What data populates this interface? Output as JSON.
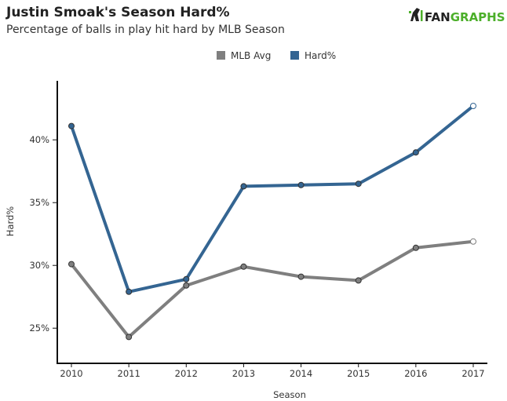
{
  "chart_data": {
    "type": "line",
    "title": "Justin Smoak's Season Hard%",
    "subtitle": "Percentage of balls in play hit hard by MLB Season",
    "brand": "FANGRAPHS",
    "brand_parts": [
      "FAN",
      "GRAPHS"
    ],
    "xlabel": "Season",
    "ylabel": "Hard%",
    "x": [
      2010,
      2011,
      2012,
      2013,
      2014,
      2015,
      2016,
      2017
    ],
    "x_tick_labels": [
      "2010",
      "2011",
      "2012",
      "2013",
      "2014",
      "2015",
      "2016",
      "2017"
    ],
    "y_ticks": [
      25,
      30,
      35,
      40
    ],
    "y_tick_labels": [
      "25%",
      "30%",
      "35%",
      "40%"
    ],
    "ylim": [
      22.2,
      44.7
    ],
    "grid": false,
    "legend_position": "top-center",
    "series": [
      {
        "name": "MLB Avg",
        "color": "#7f7f7f",
        "values": [
          30.1,
          24.3,
          28.4,
          29.9,
          29.1,
          28.8,
          31.4,
          31.9
        ]
      },
      {
        "name": "Hard%",
        "color": "#346592",
        "values": [
          41.1,
          27.9,
          28.9,
          36.3,
          36.4,
          36.5,
          39.0,
          42.7
        ]
      }
    ]
  }
}
